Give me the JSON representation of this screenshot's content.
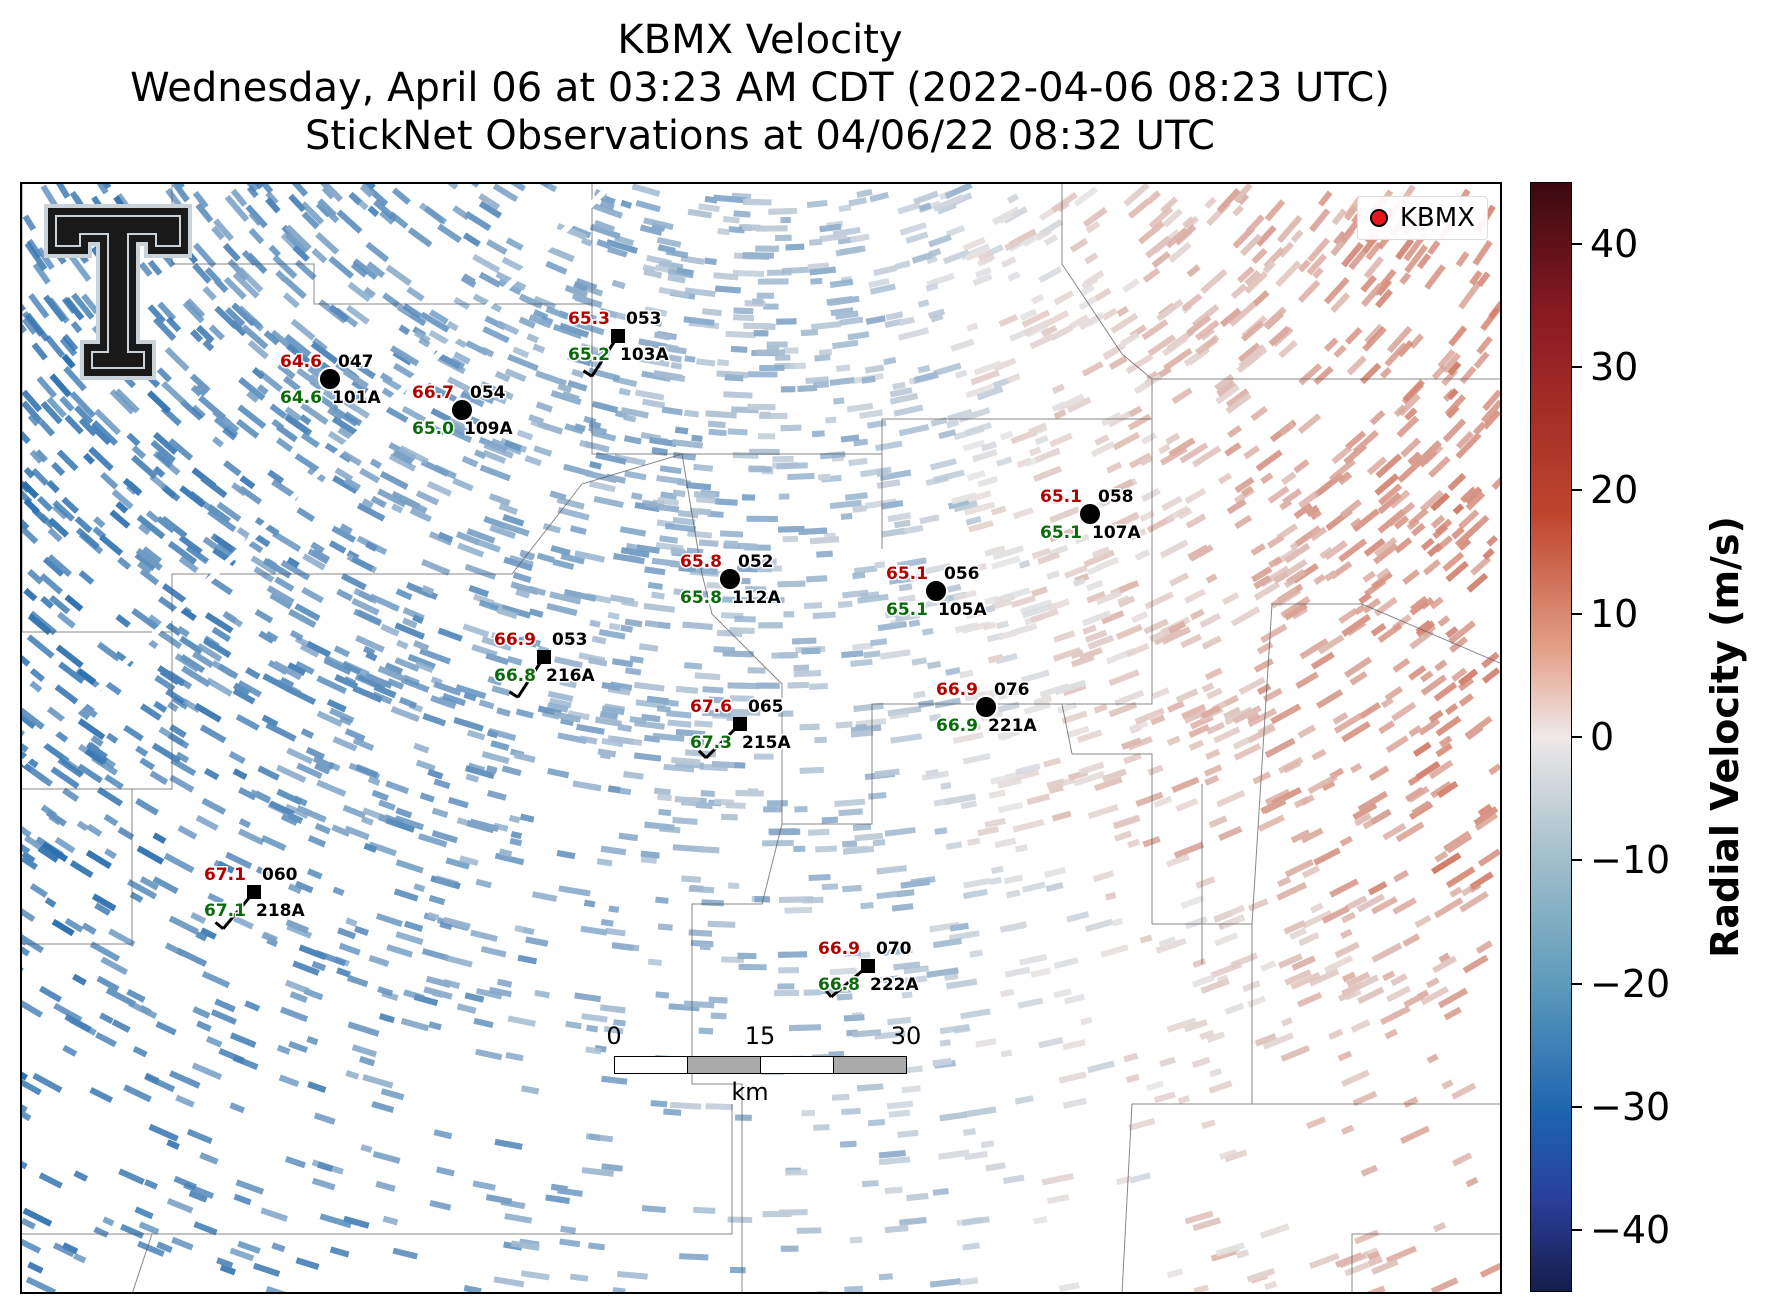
{
  "title": {
    "line1": "KBMX Velocity",
    "line2": "Wednesday, April 06 at 03:23 AM CDT (2022-04-06 08:23 UTC)",
    "line3": "StickNet Observations at 04/06/22 08:32 UTC"
  },
  "legend": {
    "label": "KBMX",
    "marker_color": "#e8161b"
  },
  "scalebar": {
    "ticks": [
      "0",
      "15",
      "30"
    ],
    "unit": "km"
  },
  "colorbar": {
    "label": "Radial Velocity (m/s)",
    "ticks": [
      {
        "value": 40,
        "label": "40"
      },
      {
        "value": 30,
        "label": "30"
      },
      {
        "value": 20,
        "label": "20"
      },
      {
        "value": 10,
        "label": "10"
      },
      {
        "value": 0,
        "label": "0"
      },
      {
        "value": -10,
        "label": "−10"
      },
      {
        "value": -20,
        "label": "−20"
      },
      {
        "value": -30,
        "label": "−30"
      },
      {
        "value": -40,
        "label": "−40"
      }
    ],
    "range": [
      -45,
      45
    ],
    "colors": {
      "max": "#3a0a10",
      "positive": "#c0452d",
      "zero": "#efe8e8",
      "negative": "#5f9cba",
      "min": "#151d4a"
    }
  },
  "stations": [
    {
      "id": "101A",
      "temp": "64.6",
      "dew": "64.6",
      "dir": "047",
      "marker": "circle"
    },
    {
      "id": "109A",
      "temp": "66.7",
      "dew": "65.0",
      "dir": "054",
      "marker": "circle"
    },
    {
      "id": "103A",
      "temp": "65.3",
      "dew": "65.2",
      "dir": "053",
      "marker": "square"
    },
    {
      "id": "107A",
      "temp": "65.1",
      "dew": "65.1",
      "dir": "058",
      "marker": "circle"
    },
    {
      "id": "112A",
      "temp": "65.8",
      "dew": "65.8",
      "dir": "052",
      "marker": "circle"
    },
    {
      "id": "105A",
      "temp": "65.1",
      "dew": "65.1",
      "dir": "056",
      "marker": "circle"
    },
    {
      "id": "216A",
      "temp": "66.9",
      "dew": "66.8",
      "dir": "053",
      "marker": "square"
    },
    {
      "id": "221A",
      "temp": "66.9",
      "dew": "66.9",
      "dir": "076",
      "marker": "circle"
    },
    {
      "id": "215A",
      "temp": "67.6",
      "dew": "67.3",
      "dir": "065",
      "marker": "square"
    },
    {
      "id": "218A",
      "temp": "67.1",
      "dew": "67.1",
      "dir": "060",
      "marker": "square"
    },
    {
      "id": "222A",
      "temp": "66.9",
      "dew": "66.8",
      "dir": "070",
      "marker": "square"
    }
  ]
}
